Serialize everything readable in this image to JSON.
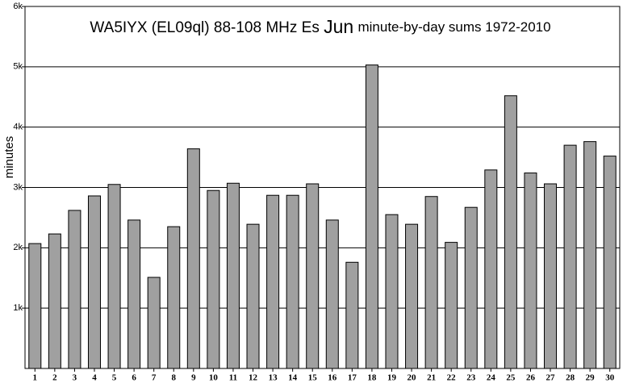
{
  "chart_data": {
    "type": "bar",
    "title": [
      "WA5IYX (EL09ql) 88-108 MHz Es",
      "Jun",
      "minute-by-day sums 1972-2010"
    ],
    "y_label": "minutes",
    "categories": [
      "1",
      "2",
      "3",
      "4",
      "5",
      "6",
      "7",
      "8",
      "9",
      "10",
      "11",
      "12",
      "13",
      "14",
      "15",
      "16",
      "17",
      "18",
      "19",
      "20",
      "21",
      "22",
      "23",
      "24",
      "25",
      "26",
      "27",
      "28",
      "29",
      "30"
    ],
    "values": [
      2070,
      2230,
      2620,
      2860,
      3050,
      2460,
      1510,
      2350,
      3640,
      2950,
      3070,
      2390,
      2870,
      2870,
      3060,
      2460,
      1760,
      5030,
      2550,
      2390,
      2850,
      2090,
      2670,
      3290,
      4520,
      3240,
      3060,
      3700,
      3760,
      3520
    ],
    "color": "#a0a0a0",
    "ylim": [
      0,
      6000
    ],
    "yticks": [
      {
        "value": 1000,
        "label": "1k"
      },
      {
        "value": 2000,
        "label": "2k"
      },
      {
        "value": 3000,
        "label": "3k"
      },
      {
        "value": 4000,
        "label": "4k"
      },
      {
        "value": 5000,
        "label": "5k"
      },
      {
        "value": 6000,
        "label": "6k"
      }
    ],
    "grid": true
  }
}
